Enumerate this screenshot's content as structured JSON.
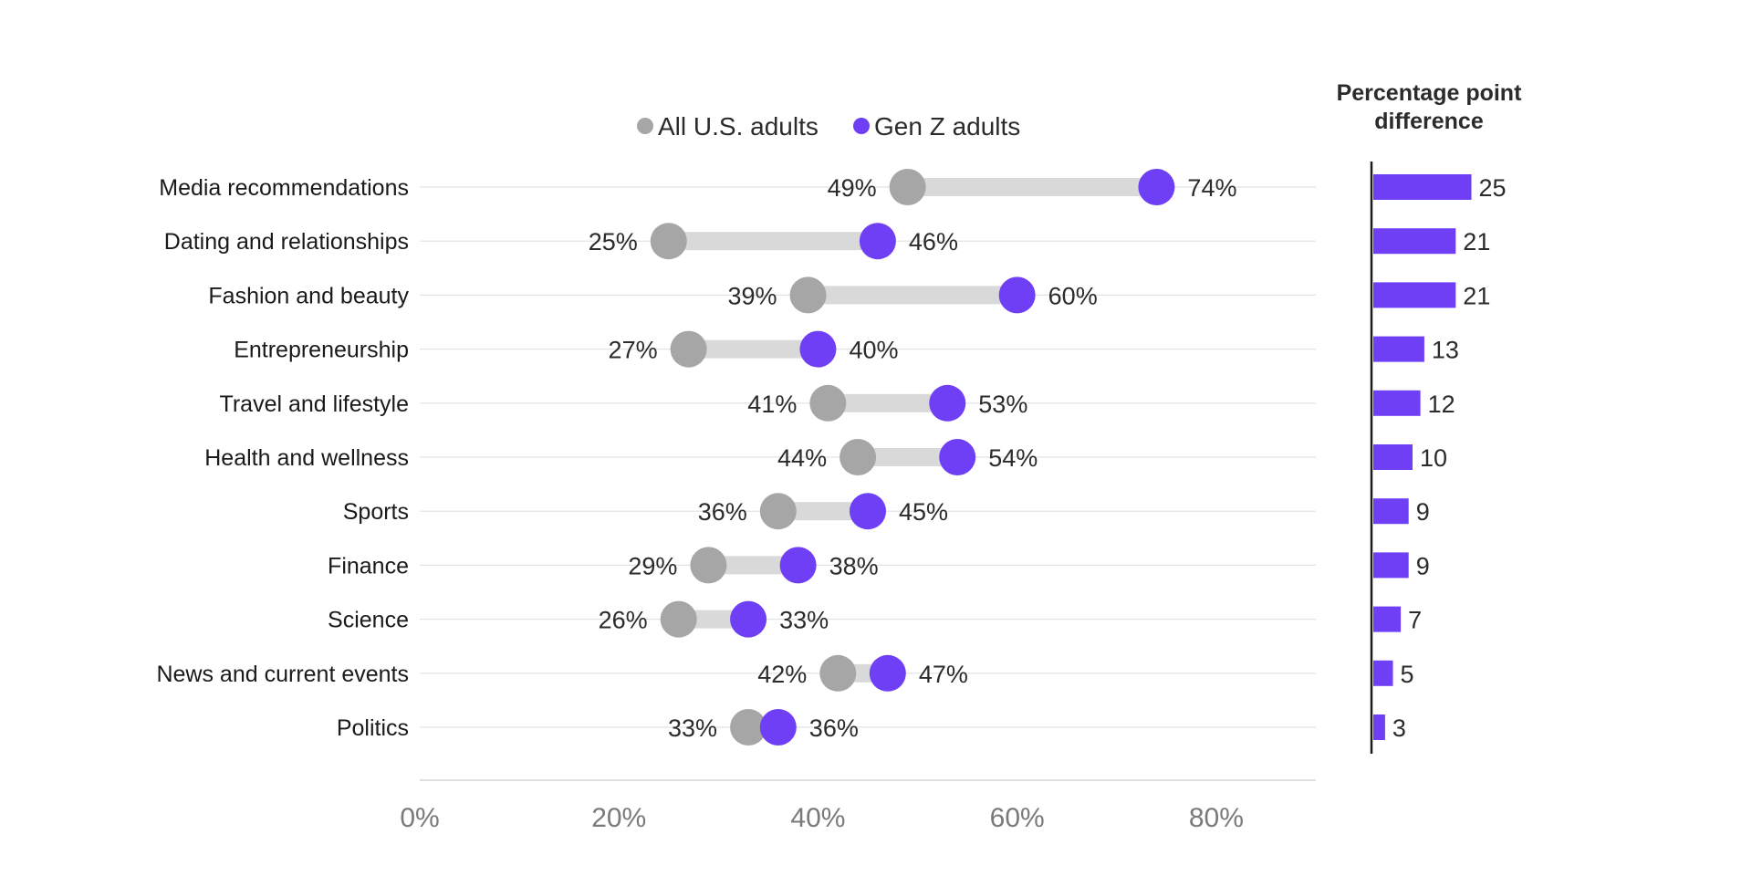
{
  "chart_data": {
    "type": "dot-range",
    "categories": [
      "Media recommendations",
      "Dating and relationships",
      "Fashion and beauty",
      "Entrepreneurship",
      "Travel and lifestyle",
      "Health and wellness",
      "Sports",
      "Finance",
      "Science",
      "News and current events",
      "Politics"
    ],
    "series": [
      {
        "name": "All U.S. adults",
        "color": "#a6a6a6",
        "values": [
          49,
          25,
          39,
          27,
          41,
          44,
          36,
          29,
          26,
          42,
          33
        ]
      },
      {
        "name": "Gen Z adults",
        "color": "#6e3ff5",
        "values": [
          74,
          46,
          60,
          40,
          53,
          54,
          45,
          38,
          33,
          47,
          36
        ]
      }
    ],
    "value_suffix": "%",
    "xlim": [
      0,
      90
    ],
    "x_ticks": [
      0,
      20,
      40,
      60,
      80
    ],
    "x_tick_labels": [
      "0%",
      "20%",
      "40%",
      "60%",
      "80%"
    ],
    "grid": true,
    "legend_position": "top",
    "difference_panel": {
      "title_lines": [
        "Percentage point",
        "difference"
      ],
      "values": [
        25,
        21,
        21,
        13,
        12,
        10,
        9,
        9,
        7,
        5,
        3
      ],
      "bar_color": "#6e3ff5"
    },
    "range_bar_color": "#d9d9d9"
  }
}
